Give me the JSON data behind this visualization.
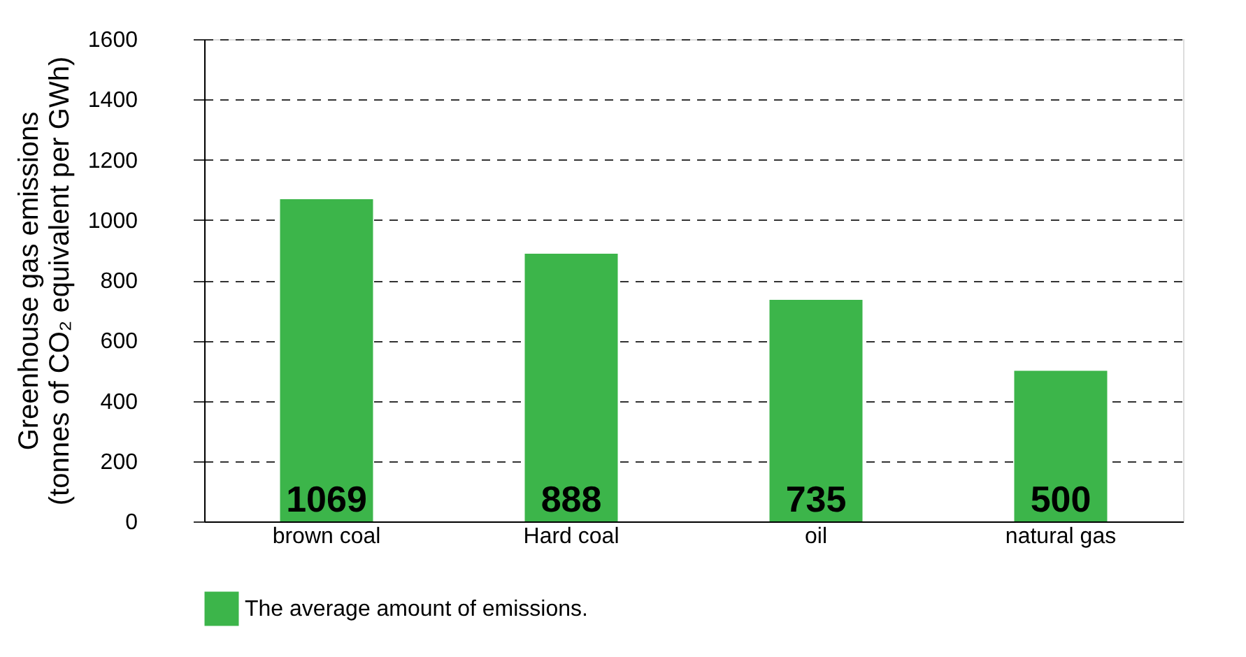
{
  "chart_data": {
    "type": "bar",
    "ylabel": "Greenhouse gas emissions\n(tonnes of CO₂ equivalent per GWh)",
    "categories": [
      "brown coal",
      "Hard coal",
      "oil",
      "natural gas"
    ],
    "series": [
      {
        "name": "The average amount of emissions.",
        "color": "#3cb54a",
        "values": [
          1069,
          888,
          735,
          500
        ]
      }
    ],
    "ylim": [
      0,
      1600
    ],
    "yticks": [
      0,
      200,
      400,
      600,
      800,
      1000,
      1200,
      1400,
      1600
    ],
    "grid": "y",
    "line_style": "dashed",
    "data_labels": true,
    "legend": "bottom left"
  }
}
